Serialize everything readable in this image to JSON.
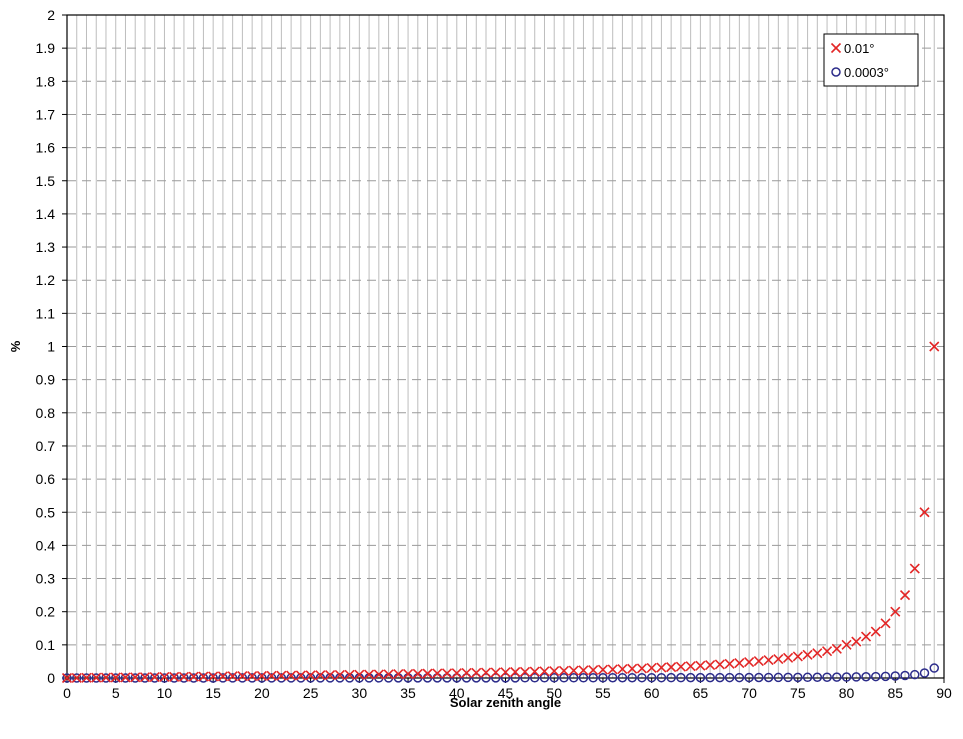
{
  "chart_data": {
    "type": "scatter",
    "xlabel": "Solar zenith angle",
    "ylabel": "%",
    "xlim": [
      0,
      90
    ],
    "ylim": [
      0,
      2
    ],
    "x_ticks": [
      "0",
      "5",
      "10",
      "15",
      "20",
      "25",
      "30",
      "35",
      "40",
      "45",
      "50",
      "55",
      "60",
      "65",
      "70",
      "75",
      "80",
      "85",
      "90"
    ],
    "y_ticks": [
      "0",
      "0.1",
      "0.2",
      "0.3",
      "0.4",
      "0.5",
      "0.6",
      "0.7",
      "0.8",
      "0.9",
      "1",
      "1.1",
      "1.2",
      "1.3",
      "1.4",
      "1.5",
      "1.6",
      "1.7",
      "1.8",
      "1.9",
      "2"
    ],
    "grid": "vertical every 1 degree, dashed horizontal at each y tick",
    "legend_position": "top-right",
    "series": [
      {
        "name": "0.01°",
        "marker": "x",
        "color": "#e32626",
        "x": [
          0,
          1,
          2,
          3,
          4,
          5,
          6,
          7,
          8,
          9,
          10,
          11,
          12,
          13,
          14,
          15,
          16,
          17,
          18,
          19,
          20,
          21,
          22,
          23,
          24,
          25,
          26,
          27,
          28,
          29,
          30,
          31,
          32,
          33,
          34,
          35,
          36,
          37,
          38,
          39,
          40,
          41,
          42,
          43,
          44,
          45,
          46,
          47,
          48,
          49,
          50,
          51,
          52,
          53,
          54,
          55,
          56,
          57,
          58,
          59,
          60,
          61,
          62,
          63,
          64,
          65,
          66,
          67,
          68,
          69,
          70,
          71,
          72,
          73,
          74,
          75,
          76,
          77,
          78,
          79,
          80,
          81,
          82,
          83,
          84,
          85,
          86,
          87,
          88,
          89
        ],
        "y": [
          0.0,
          0.0003,
          0.0006,
          0.0009,
          0.0012,
          0.0015,
          0.0018,
          0.0021,
          0.0025,
          0.0028,
          0.0031,
          0.0034,
          0.0037,
          0.004,
          0.0044,
          0.0047,
          0.005,
          0.0053,
          0.0057,
          0.006,
          0.0064,
          0.0067,
          0.0071,
          0.0074,
          0.0078,
          0.0081,
          0.0085,
          0.0089,
          0.0093,
          0.0097,
          0.0101,
          0.0105,
          0.0109,
          0.0113,
          0.0118,
          0.0122,
          0.0127,
          0.0132,
          0.0136,
          0.0141,
          0.0146,
          0.0152,
          0.0157,
          0.0163,
          0.0169,
          0.0175,
          0.0181,
          0.0187,
          0.0194,
          0.0201,
          0.0208,
          0.0216,
          0.0224,
          0.0232,
          0.0241,
          0.0249,
          0.0259,
          0.0269,
          0.0279,
          0.029,
          0.0302,
          0.0314,
          0.0328,
          0.0341,
          0.0356,
          0.0372,
          0.0389,
          0.0408,
          0.0428,
          0.0449,
          0.048,
          0.051,
          0.054,
          0.057,
          0.061,
          0.065,
          0.07,
          0.075,
          0.081,
          0.088,
          0.1,
          0.11,
          0.125,
          0.14,
          0.165,
          0.2,
          0.25,
          0.33,
          0.5,
          1.0
        ]
      },
      {
        "name": "0.0003°",
        "marker": "o",
        "color": "#2b2b8a",
        "x": [
          0,
          1,
          2,
          3,
          4,
          5,
          6,
          7,
          8,
          9,
          10,
          11,
          12,
          13,
          14,
          15,
          16,
          17,
          18,
          19,
          20,
          21,
          22,
          23,
          24,
          25,
          26,
          27,
          28,
          29,
          30,
          31,
          32,
          33,
          34,
          35,
          36,
          37,
          38,
          39,
          40,
          41,
          42,
          43,
          44,
          45,
          46,
          47,
          48,
          49,
          50,
          51,
          52,
          53,
          54,
          55,
          56,
          57,
          58,
          59,
          60,
          61,
          62,
          63,
          64,
          65,
          66,
          67,
          68,
          69,
          70,
          71,
          72,
          73,
          74,
          75,
          76,
          77,
          78,
          79,
          80,
          81,
          82,
          83,
          84,
          85,
          86,
          87,
          88,
          89
        ],
        "y": [
          0.0,
          0.0,
          0.0,
          0.0,
          0.0,
          0.0001,
          0.0001,
          0.0001,
          0.0001,
          0.0001,
          0.0001,
          0.0001,
          0.0001,
          0.0001,
          0.0001,
          0.0001,
          0.0002,
          0.0002,
          0.0002,
          0.0002,
          0.0002,
          0.0002,
          0.0002,
          0.0002,
          0.0002,
          0.0002,
          0.0003,
          0.0003,
          0.0003,
          0.0003,
          0.0003,
          0.0003,
          0.0003,
          0.0003,
          0.0004,
          0.0004,
          0.0004,
          0.0004,
          0.0004,
          0.0004,
          0.0004,
          0.0005,
          0.0005,
          0.0005,
          0.0005,
          0.0005,
          0.0005,
          0.0006,
          0.0006,
          0.0006,
          0.0006,
          0.0006,
          0.0007,
          0.0007,
          0.0007,
          0.0007,
          0.0008,
          0.0008,
          0.0008,
          0.0009,
          0.0009,
          0.0009,
          0.001,
          0.001,
          0.0011,
          0.0011,
          0.0012,
          0.0012,
          0.0013,
          0.0013,
          0.0014,
          0.0015,
          0.0016,
          0.0017,
          0.0018,
          0.0019,
          0.0021,
          0.0023,
          0.0024,
          0.0026,
          0.0029,
          0.0033,
          0.0038,
          0.0043,
          0.005,
          0.006,
          0.0075,
          0.01,
          0.015,
          0.03
        ]
      }
    ]
  }
}
